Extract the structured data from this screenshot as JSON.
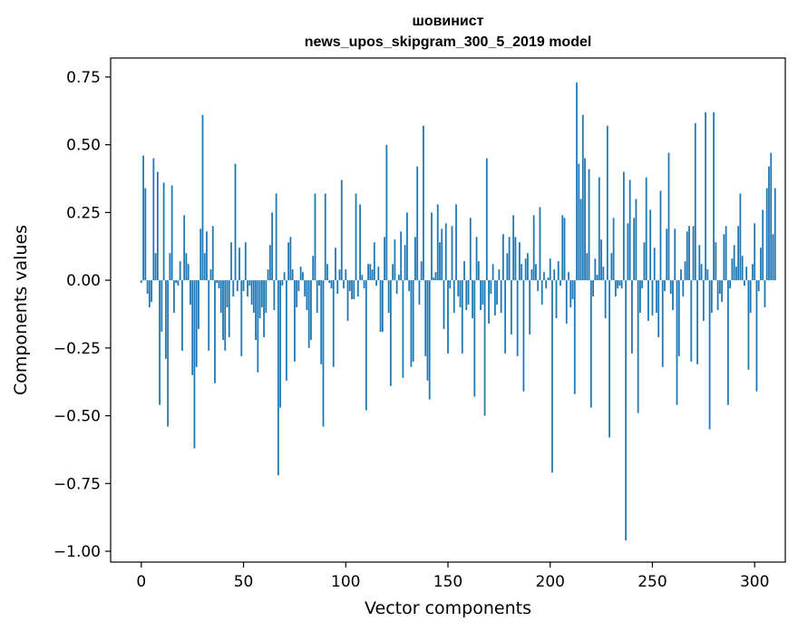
{
  "chart_data": {
    "type": "bar",
    "title_line1": "шовинист",
    "title_line2": "news_upos_skipgram_300_5_2019 model",
    "xlabel": "Vector components",
    "ylabel": "Components values",
    "xlim": [
      -15,
      315
    ],
    "ylim": [
      -1.04,
      0.82
    ],
    "xticks": [
      0,
      50,
      100,
      150,
      200,
      250,
      300
    ],
    "xtick_labels": [
      "0",
      "50",
      "100",
      "150",
      "200",
      "250",
      "300"
    ],
    "yticks": [
      0.75,
      0.5,
      0.25,
      0.0,
      -0.25,
      -0.5,
      -0.75,
      -1.0
    ],
    "ytick_labels": [
      "0.75",
      "0.50",
      "0.25",
      "0.00",
      "−0.25",
      "−0.50",
      "−0.75",
      "−1.00"
    ],
    "bar_color": "#1f77b4",
    "values": [
      -0.01,
      0.46,
      0.34,
      -0.05,
      -0.1,
      -0.08,
      0.45,
      0.1,
      0.4,
      -0.46,
      -0.19,
      0.36,
      -0.29,
      -0.54,
      0.1,
      0.35,
      -0.12,
      -0.01,
      -0.02,
      0.07,
      -0.26,
      0.24,
      0.1,
      0.06,
      -0.09,
      -0.35,
      -0.62,
      -0.32,
      -0.18,
      0.19,
      0.61,
      0.1,
      0.18,
      -0.26,
      0.04,
      0.2,
      -0.38,
      -0.01,
      -0.03,
      -0.12,
      -0.22,
      -0.26,
      -0.1,
      -0.21,
      0.14,
      -0.06,
      0.43,
      -0.04,
      0.12,
      -0.28,
      -0.04,
      0.14,
      -0.06,
      -0.02,
      -0.09,
      -0.12,
      -0.22,
      -0.34,
      -0.14,
      -0.1,
      -0.21,
      -0.12,
      0.04,
      0.13,
      0.25,
      -0.11,
      0.32,
      -0.72,
      -0.47,
      -0.02,
      0.03,
      -0.37,
      0.14,
      0.16,
      0.04,
      -0.3,
      -0.1,
      -0.04,
      0.05,
      0.03,
      -0.06,
      -0.11,
      -0.25,
      -0.22,
      0.09,
      0.32,
      -0.12,
      -0.02,
      -0.31,
      -0.54,
      0.32,
      0.06,
      -0.01,
      -0.03,
      -0.32,
      0.12,
      -0.05,
      0.04,
      0.37,
      -0.03,
      0.04,
      -0.15,
      -0.04,
      -0.07,
      -0.07,
      0.32,
      -0.06,
      0.28,
      0.02,
      -0.03,
      -0.48,
      0.06,
      0.06,
      0.04,
      0.14,
      -0.02,
      0.05,
      -0.19,
      -0.19,
      0.16,
      0.5,
      -0.12,
      -0.39,
      0.06,
      0.15,
      -0.05,
      0.02,
      0.18,
      -0.36,
      0.13,
      0.25,
      -0.04,
      -0.32,
      -0.3,
      0.16,
      0.42,
      -0.09,
      0.07,
      0.57,
      -0.28,
      -0.37,
      -0.44,
      0.25,
      0.01,
      0.03,
      0.28,
      0.14,
      0.19,
      -0.18,
      0.21,
      -0.27,
      -0.03,
      0.2,
      -0.12,
      0.28,
      -0.06,
      -0.1,
      -0.27,
      0.07,
      -0.11,
      -0.09,
      0.23,
      -0.14,
      -0.43,
      0.16,
      0.07,
      -0.11,
      -0.09,
      -0.5,
      0.45,
      -0.16,
      -0.05,
      0.06,
      -0.13,
      -0.09,
      0.04,
      -0.12,
      0.17,
      -0.27,
      0.1,
      0.16,
      -0.2,
      0.24,
      0.16,
      -0.28,
      0.14,
      0.06,
      -0.41,
      0.08,
      0.1,
      -0.2,
      0.04,
      0.24,
      0.06,
      -0.04,
      0.27,
      -0.09,
      0.03,
      -0.03,
      0.01,
      0.08,
      -0.71,
      0.04,
      -0.14,
      0.07,
      -0.02,
      0.24,
      0.23,
      -0.16,
      0.03,
      -0.1,
      -0.07,
      -0.42,
      0.73,
      0.43,
      0.3,
      0.61,
      0.45,
      0.1,
      0.41,
      -0.47,
      -0.06,
      0.08,
      0.02,
      0.38,
      0.15,
      0.05,
      -0.14,
      0.57,
      -0.58,
      0.1,
      0.23,
      -0.06,
      -0.03,
      -0.02,
      -0.03,
      0.4,
      -0.96,
      0.21,
      0.37,
      -0.27,
      0.23,
      0.3,
      -0.49,
      -0.12,
      -0.03,
      0.14,
      0.38,
      -0.15,
      0.26,
      -0.13,
      0.12,
      -0.12,
      -0.21,
      0.33,
      -0.32,
      -0.04,
      0.19,
      0.47,
      -0.05,
      -0.11,
      0.19,
      -0.46,
      -0.28,
      0.04,
      -0.06,
      0.07,
      0.18,
      0.2,
      -0.3,
      0.2,
      0.58,
      -0.31,
      0.13,
      0.06,
      -0.15,
      0.62,
      0.04,
      -0.55,
      -0.12,
      0.62,
      0.14,
      -0.11,
      -0.05,
      -0.08,
      0.17,
      0.2,
      -0.46,
      -0.03,
      0.08,
      0.13,
      0.05,
      0.2,
      0.32,
      0.09,
      -0.02,
      0.05,
      -0.33,
      -0.12,
      0.06,
      0.21,
      -0.41,
      -0.04,
      0.12,
      0.26,
      -0.1,
      0.34,
      0.42,
      0.47,
      0.17,
      0.34
    ]
  }
}
